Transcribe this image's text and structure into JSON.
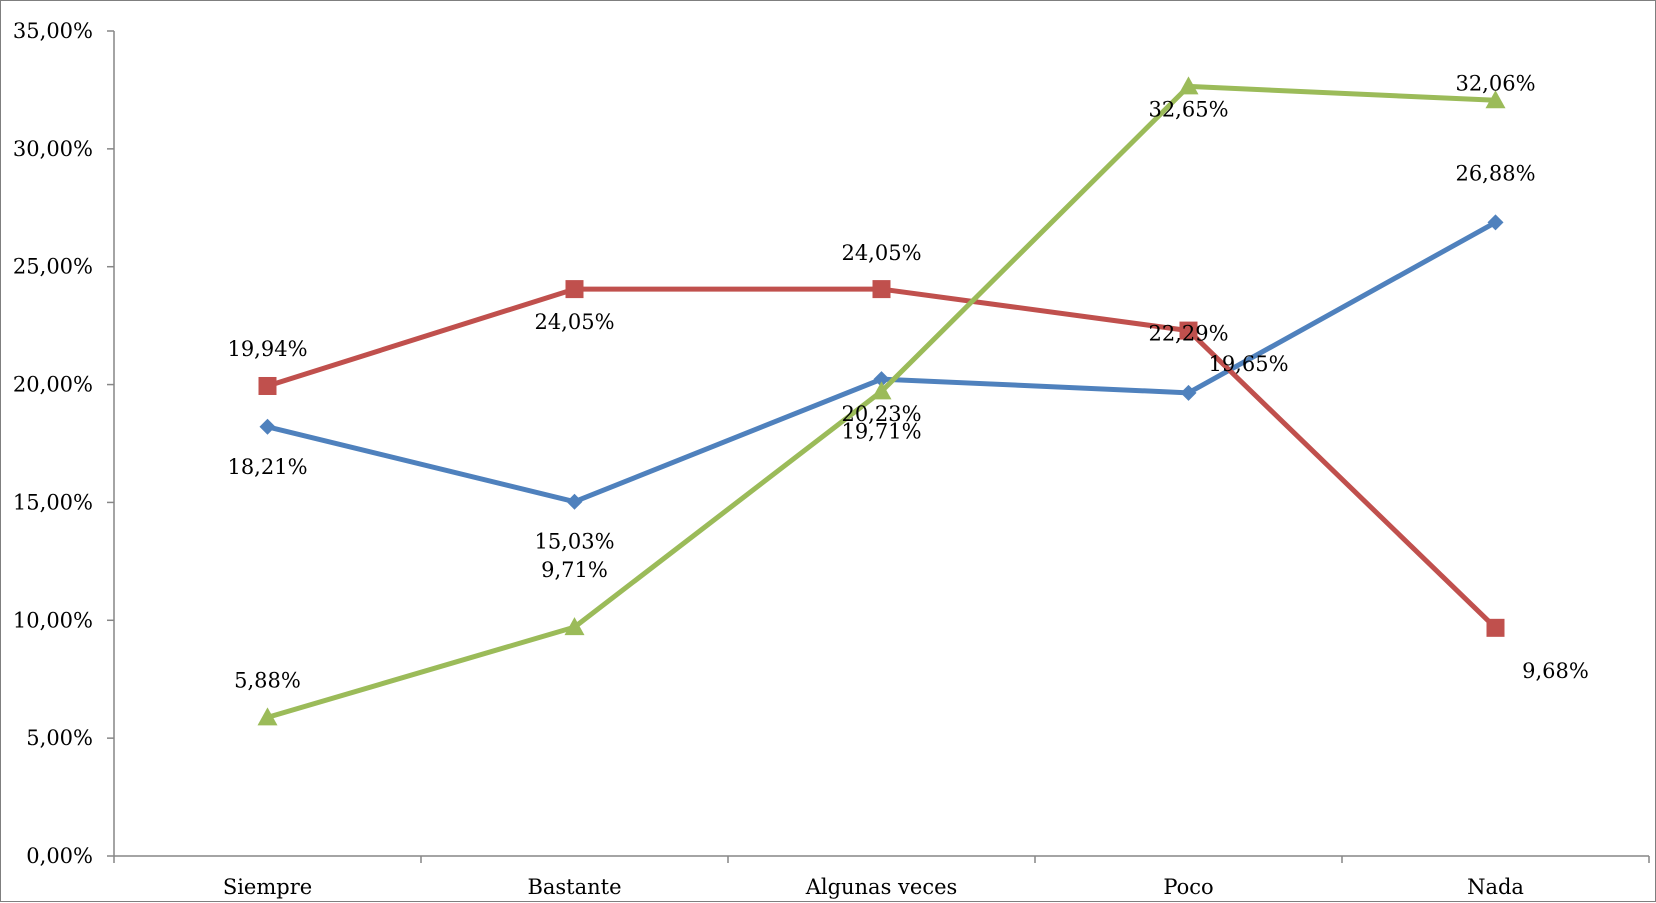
{
  "chart_data": {
    "type": "line",
    "title": "",
    "xlabel": "",
    "ylabel": "",
    "categories": [
      "Siempre",
      "Bastante",
      "Algunas veces",
      "Poco",
      "Nada"
    ],
    "y_ticks": [
      "0,00%",
      "5,00%",
      "10,00%",
      "15,00%",
      "20,00%",
      "25,00%",
      "30,00%",
      "35,00%"
    ],
    "ylim": [
      0,
      35
    ],
    "grid": false,
    "legend": "none",
    "series": [
      {
        "color": "#4f81bd",
        "marker": "diamond",
        "values": [
          18.21,
          15.03,
          20.23,
          19.65,
          26.88
        ],
        "labels": [
          "18,21%",
          "15,03%",
          "20,23%",
          "19,65%",
          "26,88%"
        ]
      },
      {
        "color": "#c0504d",
        "marker": "square",
        "values": [
          19.94,
          24.05,
          24.05,
          22.29,
          9.68
        ],
        "labels": [
          "19,94%",
          "24,05%",
          "24,05%",
          "22,29%",
          "9,68%"
        ]
      },
      {
        "color": "#9bbb59",
        "marker": "triangle",
        "values": [
          5.88,
          9.71,
          19.71,
          32.65,
          32.06
        ],
        "labels": [
          "5,88%",
          "9,71%",
          "19,71%",
          "32,65%",
          "32,06%"
        ]
      }
    ]
  }
}
